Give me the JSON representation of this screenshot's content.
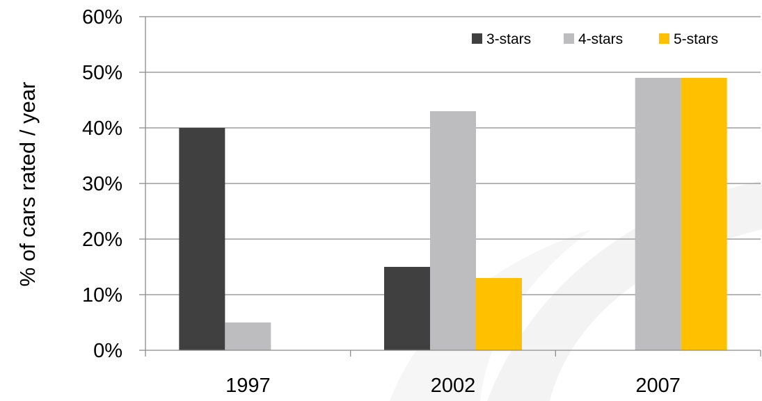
{
  "chart_data": {
    "type": "bar",
    "title": "",
    "xlabel": "",
    "ylabel": "% of cars rated / year",
    "categories": [
      "1997",
      "2002",
      "2007"
    ],
    "series": [
      {
        "name": "3-stars",
        "color": "#404040",
        "values": [
          40,
          15,
          0
        ]
      },
      {
        "name": "4-stars",
        "color": "#bdbdbf",
        "values": [
          5,
          43,
          49
        ]
      },
      {
        "name": "5-stars",
        "color": "#ffc000",
        "values": [
          0,
          13,
          49
        ]
      }
    ],
    "ylim": [
      0,
      60
    ],
    "yticks": [
      0,
      10,
      20,
      30,
      40,
      50,
      60
    ],
    "ytick_labels": [
      "0%",
      "10%",
      "20%",
      "30%",
      "40%",
      "50%",
      "60%"
    ],
    "grid": true,
    "legend_position": "top-right",
    "gridline_color": "#8c8c8c",
    "background_watermark": "light-gray-swoosh"
  }
}
